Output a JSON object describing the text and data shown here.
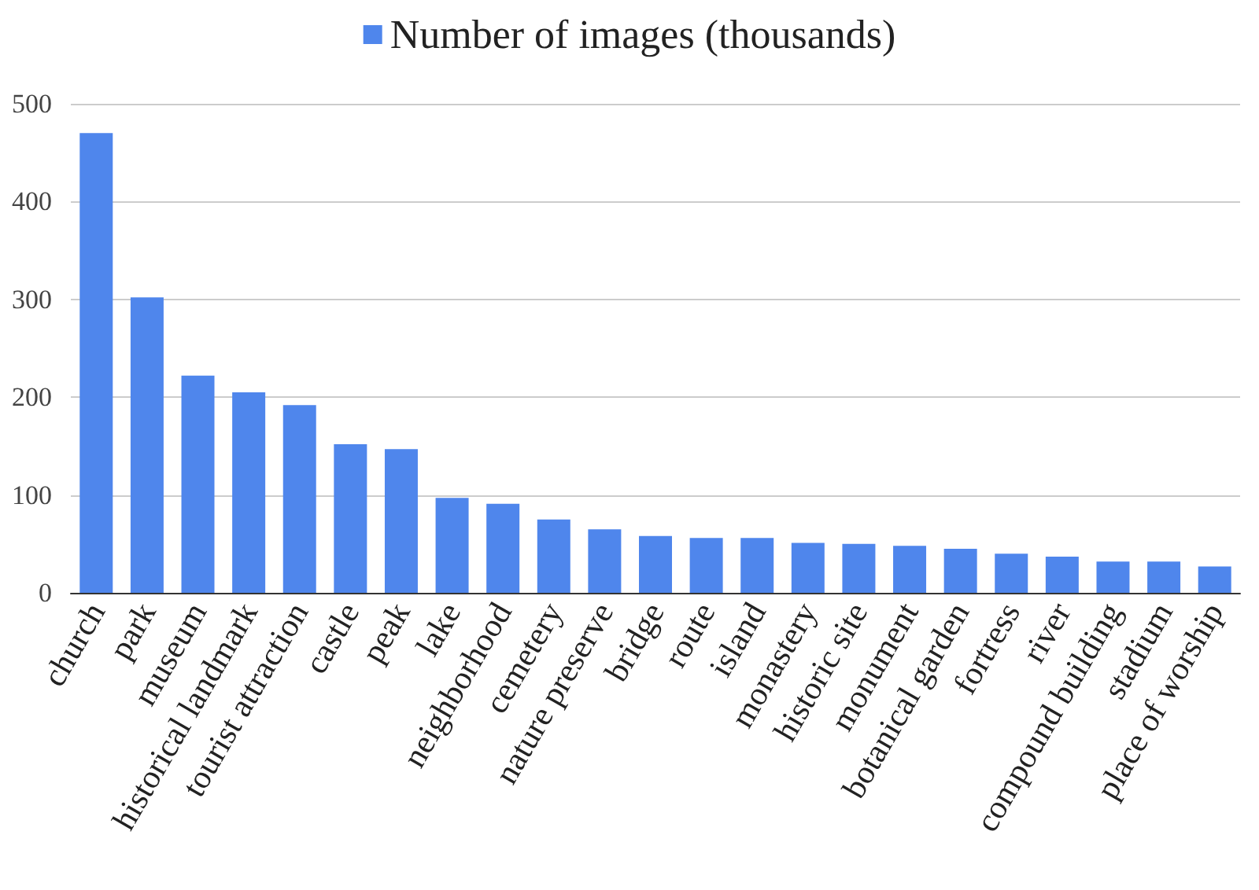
{
  "chart_data": {
    "type": "bar",
    "categories": [
      "church",
      "park",
      "museum",
      "historical landmark",
      "tourist attraction",
      "castle",
      "peak",
      "lake",
      "neighborhood",
      "cemetery",
      "nature preserve",
      "bridge",
      "route",
      "island",
      "monastery",
      "historic site",
      "monument",
      "botanical garden",
      "fortress",
      "river",
      "compound building",
      "stadium",
      "place of worship"
    ],
    "series": [
      {
        "name": "Number of images (thousands)",
        "color": "#4f86ec",
        "values": [
          470,
          302,
          222,
          205,
          192,
          152,
          147,
          97,
          91,
          75,
          65,
          58,
          56,
          56,
          51,
          50,
          48,
          45,
          40,
          37,
          32,
          32,
          27
        ]
      }
    ],
    "ylim": [
      0,
      500
    ],
    "yticks": [
      0,
      100,
      200,
      300,
      400,
      500
    ],
    "grid": "y",
    "legend": "top"
  }
}
